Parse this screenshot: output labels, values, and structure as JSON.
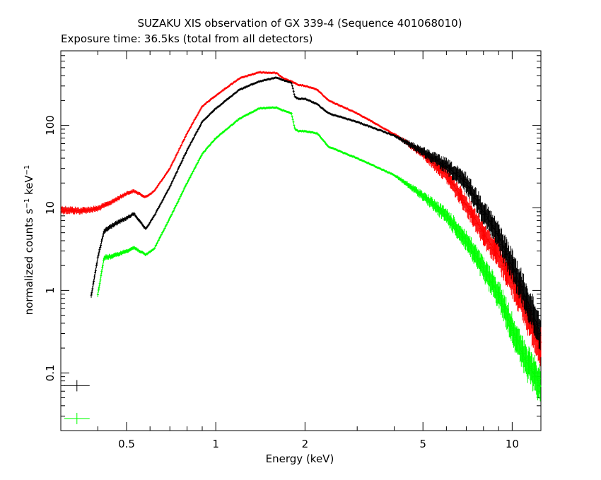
{
  "chart_data": {
    "type": "scatter",
    "title": "SUZAKU XIS observation of GX 339-4 (Sequence 401068010)",
    "subtitle": "Exposure time: 36.5ks (total from all detectors)",
    "xlabel": "Energy (keV)",
    "ylabel": {
      "main": "normalized counts s",
      "sup1": "−1",
      "mid": " keV",
      "sup2": "−1"
    },
    "x_scale": "log",
    "y_scale": "log",
    "xlim": [
      0.3,
      12.5
    ],
    "ylim": [
      0.02,
      800
    ],
    "x_ticks": [
      {
        "value": 0.5,
        "label": "0.5"
      },
      {
        "value": 1,
        "label": "1"
      },
      {
        "value": 2,
        "label": "2"
      },
      {
        "value": 5,
        "label": "5"
      },
      {
        "value": 10,
        "label": "10"
      }
    ],
    "y_ticks": [
      {
        "value": 0.1,
        "label": "0.1"
      },
      {
        "value": 1,
        "label": "1"
      },
      {
        "value": 10,
        "label": "10"
      },
      {
        "value": 100,
        "label": "100"
      }
    ],
    "grid": false,
    "legend": "bottom-left",
    "series": [
      {
        "color": "#ff0000",
        "x_start": 0.3,
        "points": [
          [
            0.3,
            9.5
          ],
          [
            0.35,
            9.2
          ],
          [
            0.4,
            9.8
          ],
          [
            0.45,
            12
          ],
          [
            0.5,
            15
          ],
          [
            0.53,
            16
          ],
          [
            0.58,
            13.5
          ],
          [
            0.62,
            16
          ],
          [
            0.7,
            30
          ],
          [
            0.8,
            80
          ],
          [
            0.9,
            170
          ],
          [
            1.0,
            230
          ],
          [
            1.2,
            370
          ],
          [
            1.4,
            440
          ],
          [
            1.6,
            430
          ],
          [
            1.7,
            370
          ],
          [
            1.8,
            340
          ],
          [
            1.9,
            310
          ],
          [
            2.0,
            300
          ],
          [
            2.2,
            270
          ],
          [
            2.4,
            200
          ],
          [
            3.0,
            140
          ],
          [
            4.0,
            78
          ],
          [
            5.0,
            45
          ],
          [
            6.0,
            25
          ],
          [
            7.0,
            11
          ],
          [
            8.0,
            5
          ],
          [
            9.0,
            2.6
          ],
          [
            10.0,
            1.3
          ],
          [
            11.0,
            0.6
          ],
          [
            12.5,
            0.2
          ]
        ]
      },
      {
        "color": "#000000",
        "x_start": 0.38,
        "points": [
          [
            0.38,
            0.85
          ],
          [
            0.4,
            2.5
          ],
          [
            0.42,
            5.2
          ],
          [
            0.45,
            6.2
          ],
          [
            0.5,
            7.5
          ],
          [
            0.53,
            8.5
          ],
          [
            0.58,
            5.5
          ],
          [
            0.62,
            8
          ],
          [
            0.7,
            18
          ],
          [
            0.8,
            50
          ],
          [
            0.9,
            110
          ],
          [
            1.0,
            160
          ],
          [
            1.2,
            270
          ],
          [
            1.4,
            340
          ],
          [
            1.6,
            380
          ],
          [
            1.7,
            350
          ],
          [
            1.8,
            330
          ],
          [
            1.85,
            220
          ],
          [
            1.9,
            210
          ],
          [
            2.0,
            210
          ],
          [
            2.2,
            180
          ],
          [
            2.4,
            140
          ],
          [
            3.0,
            110
          ],
          [
            4.0,
            75
          ],
          [
            5.0,
            48
          ],
          [
            6.0,
            32
          ],
          [
            7.0,
            20
          ],
          [
            8.0,
            9
          ],
          [
            9.0,
            4.5
          ],
          [
            10.0,
            2
          ],
          [
            11.0,
            0.9
          ],
          [
            12.5,
            0.3
          ]
        ]
      },
      {
        "color": "#00ff00",
        "x_start": 0.4,
        "points": [
          [
            0.4,
            0.9
          ],
          [
            0.42,
            2.5
          ],
          [
            0.45,
            2.6
          ],
          [
            0.5,
            3
          ],
          [
            0.53,
            3.3
          ],
          [
            0.58,
            2.7
          ],
          [
            0.62,
            3.2
          ],
          [
            0.7,
            7.5
          ],
          [
            0.8,
            20
          ],
          [
            0.9,
            45
          ],
          [
            1.0,
            70
          ],
          [
            1.2,
            120
          ],
          [
            1.4,
            160
          ],
          [
            1.6,
            165
          ],
          [
            1.7,
            150
          ],
          [
            1.8,
            140
          ],
          [
            1.85,
            90
          ],
          [
            1.9,
            85
          ],
          [
            2.0,
            85
          ],
          [
            2.2,
            80
          ],
          [
            2.4,
            55
          ],
          [
            3.0,
            40
          ],
          [
            4.0,
            25
          ],
          [
            5.0,
            14
          ],
          [
            6.0,
            8
          ],
          [
            7.0,
            4
          ],
          [
            8.0,
            1.8
          ],
          [
            9.0,
            0.9
          ],
          [
            10.0,
            0.35
          ],
          [
            11.0,
            0.15
          ],
          [
            12.5,
            0.07
          ]
        ]
      }
    ],
    "legend_markers": [
      {
        "color": "#000000",
        "x": 0.34,
        "y": 0.07
      },
      {
        "color": "#00ff00",
        "x": 0.34,
        "y": 0.028
      }
    ]
  }
}
